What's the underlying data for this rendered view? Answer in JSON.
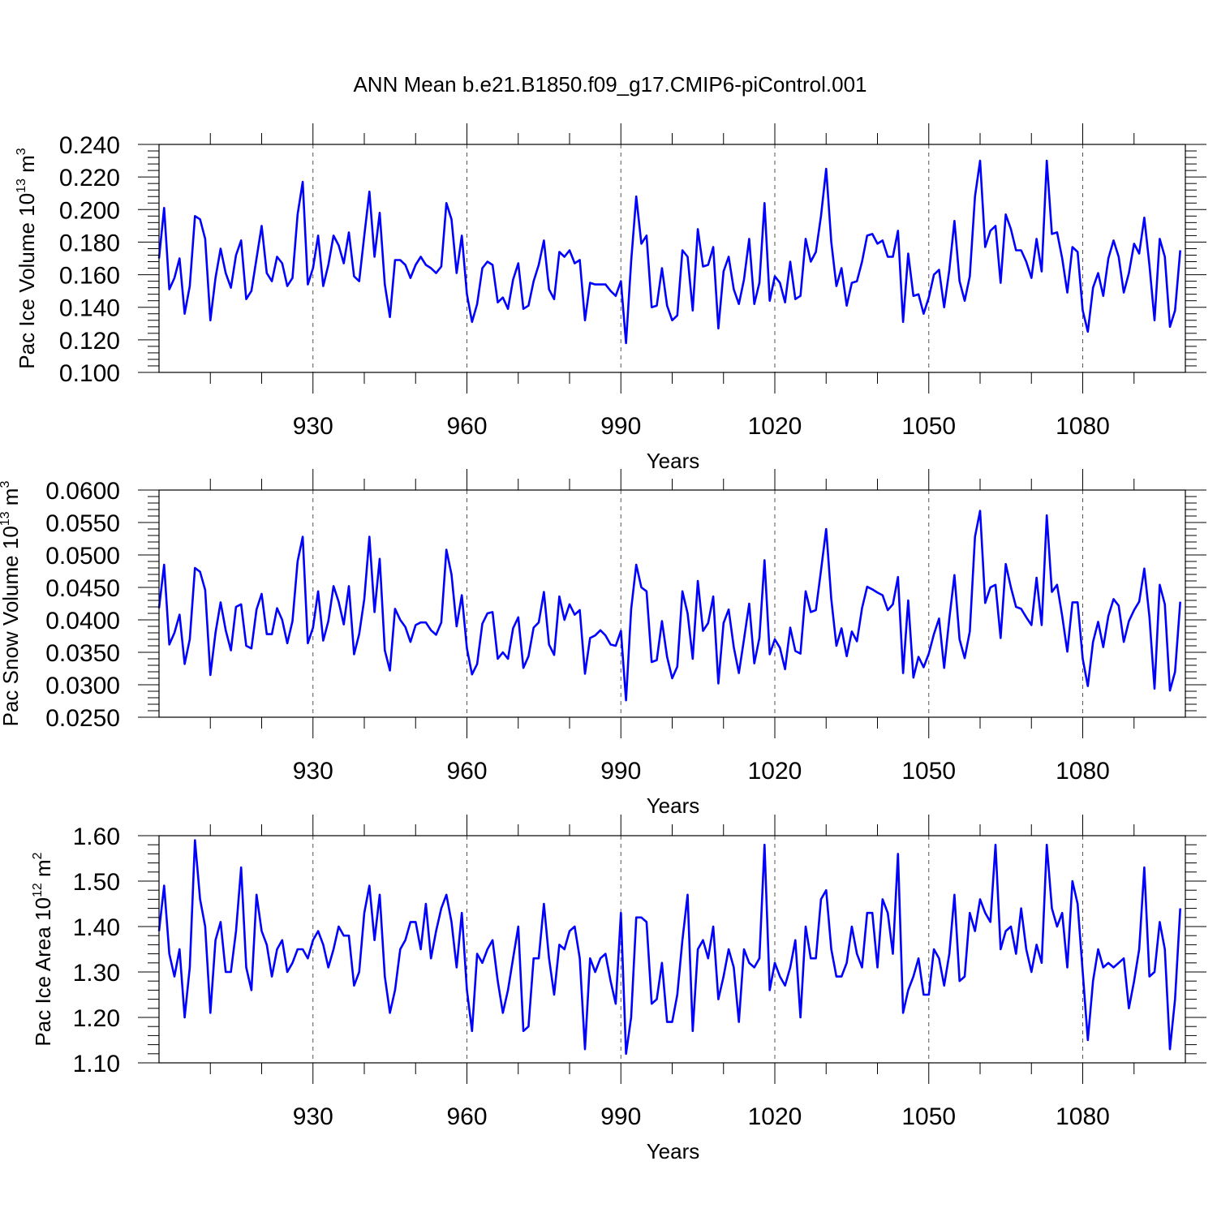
{
  "title": "ANN Mean b.e21.B1850.f09_g17.CMIP6-piControl.001",
  "series_color": "#0000ff",
  "chart_data": [
    {
      "type": "line",
      "ylabel_main": "Pac Ice Volume 10",
      "ylabel_exp": "13",
      "ylabel_unit": "m",
      "ylabel_unit_exp": "3",
      "xlabel": "Years",
      "xlim": [
        900,
        1100
      ],
      "xticks": [
        930,
        960,
        990,
        1020,
        1050,
        1080
      ],
      "ylim": [
        0.1,
        0.24
      ],
      "yticks": [
        0.1,
        0.12,
        0.14,
        0.16,
        0.18,
        0.2,
        0.22,
        0.24
      ],
      "ytick_labels": [
        "0.100",
        "0.120",
        "0.140",
        "0.160",
        "0.180",
        "0.200",
        "0.220",
        "0.240"
      ],
      "x_start": 900,
      "values": [
        0.17,
        0.201,
        0.151,
        0.158,
        0.17,
        0.136,
        0.153,
        0.196,
        0.194,
        0.182,
        0.132,
        0.158,
        0.176,
        0.161,
        0.152,
        0.172,
        0.181,
        0.145,
        0.15,
        0.17,
        0.19,
        0.161,
        0.156,
        0.171,
        0.167,
        0.153,
        0.158,
        0.197,
        0.217,
        0.154,
        0.164,
        0.184,
        0.153,
        0.166,
        0.184,
        0.178,
        0.167,
        0.186,
        0.159,
        0.156,
        0.184,
        0.211,
        0.171,
        0.198,
        0.154,
        0.134,
        0.169,
        0.169,
        0.166,
        0.158,
        0.166,
        0.171,
        0.166,
        0.164,
        0.161,
        0.165,
        0.204,
        0.194,
        0.161,
        0.184,
        0.148,
        0.131,
        0.142,
        0.164,
        0.168,
        0.166,
        0.143,
        0.146,
        0.139,
        0.157,
        0.167,
        0.139,
        0.141,
        0.156,
        0.166,
        0.181,
        0.151,
        0.145,
        0.174,
        0.171,
        0.175,
        0.167,
        0.169,
        0.132,
        0.155,
        0.154,
        0.154,
        0.154,
        0.15,
        0.147,
        0.156,
        0.118,
        0.168,
        0.208,
        0.179,
        0.184,
        0.14,
        0.141,
        0.164,
        0.141,
        0.132,
        0.135,
        0.175,
        0.171,
        0.138,
        0.188,
        0.165,
        0.166,
        0.177,
        0.127,
        0.162,
        0.171,
        0.151,
        0.142,
        0.157,
        0.182,
        0.142,
        0.155,
        0.204,
        0.144,
        0.159,
        0.155,
        0.143,
        0.168,
        0.145,
        0.147,
        0.182,
        0.168,
        0.174,
        0.196,
        0.225,
        0.18,
        0.153,
        0.164,
        0.141,
        0.155,
        0.156,
        0.168,
        0.184,
        0.185,
        0.179,
        0.181,
        0.171,
        0.171,
        0.187,
        0.131,
        0.173,
        0.147,
        0.148,
        0.136,
        0.146,
        0.16,
        0.163,
        0.14,
        0.163,
        0.193,
        0.156,
        0.144,
        0.159,
        0.208,
        0.23,
        0.177,
        0.187,
        0.19,
        0.155,
        0.197,
        0.188,
        0.175,
        0.175,
        0.168,
        0.158,
        0.182,
        0.162,
        0.23,
        0.185,
        0.186,
        0.17,
        0.149,
        0.177,
        0.174,
        0.138,
        0.125,
        0.152,
        0.161,
        0.147,
        0.17,
        0.181,
        0.171,
        0.149,
        0.161,
        0.179,
        0.173,
        0.195,
        0.166,
        0.132,
        0.182,
        0.171,
        0.128,
        0.138,
        0.175
      ]
    },
    {
      "type": "line",
      "ylabel_main": "Pac Snow Volume 10",
      "ylabel_exp": "13",
      "ylabel_unit": "m",
      "ylabel_unit_exp": "3",
      "xlabel": "Years",
      "xlim": [
        900,
        1100
      ],
      "xticks": [
        930,
        960,
        990,
        1020,
        1050,
        1080
      ],
      "ylim": [
        0.025,
        0.06
      ],
      "yticks": [
        0.025,
        0.03,
        0.035,
        0.04,
        0.045,
        0.05,
        0.055,
        0.06
      ],
      "ytick_labels": [
        "0.0250",
        "0.0300",
        "0.0350",
        "0.0400",
        "0.0450",
        "0.0500",
        "0.0550",
        "0.0600"
      ],
      "x_start": 900,
      "values": [
        0.0418,
        0.0485,
        0.0362,
        0.038,
        0.0408,
        0.0332,
        0.037,
        0.048,
        0.0474,
        0.0446,
        0.0315,
        0.038,
        0.0427,
        0.0384,
        0.0353,
        0.042,
        0.0424,
        0.036,
        0.0356,
        0.0416,
        0.044,
        0.0378,
        0.0378,
        0.0418,
        0.04,
        0.0364,
        0.0398,
        0.049,
        0.0528,
        0.0364,
        0.0388,
        0.0444,
        0.0368,
        0.0398,
        0.0452,
        0.0428,
        0.0393,
        0.0452,
        0.0347,
        0.0378,
        0.0432,
        0.0528,
        0.0412,
        0.0494,
        0.0353,
        0.0322,
        0.0417,
        0.04,
        0.0389,
        0.0366,
        0.0392,
        0.0396,
        0.0396,
        0.0384,
        0.0377,
        0.0396,
        0.0508,
        0.047,
        0.039,
        0.0438,
        0.0356,
        0.0316,
        0.0332,
        0.0394,
        0.041,
        0.0412,
        0.034,
        0.035,
        0.034,
        0.0387,
        0.0404,
        0.0326,
        0.0344,
        0.0388,
        0.0396,
        0.0443,
        0.0362,
        0.0346,
        0.0436,
        0.04,
        0.0424,
        0.0408,
        0.0415,
        0.0317,
        0.0372,
        0.0376,
        0.0384,
        0.0376,
        0.0362,
        0.036,
        0.0383,
        0.0276,
        0.0416,
        0.0485,
        0.045,
        0.0444,
        0.0335,
        0.0338,
        0.0398,
        0.0343,
        0.031,
        0.0328,
        0.0444,
        0.041,
        0.034,
        0.046,
        0.0383,
        0.0395,
        0.0436,
        0.0302,
        0.0395,
        0.0416,
        0.0358,
        0.0318,
        0.037,
        0.0425,
        0.0333,
        0.0372,
        0.0492,
        0.0347,
        0.037,
        0.0357,
        0.0324,
        0.0388,
        0.0352,
        0.0348,
        0.0444,
        0.0412,
        0.0415,
        0.0476,
        0.054,
        0.0432,
        0.036,
        0.0387,
        0.0344,
        0.0382,
        0.0367,
        0.0418,
        0.0451,
        0.0447,
        0.0442,
        0.0438,
        0.0415,
        0.0424,
        0.0466,
        0.0318,
        0.043,
        0.0311,
        0.0343,
        0.0327,
        0.0348,
        0.0378,
        0.0402,
        0.0326,
        0.0402,
        0.0469,
        0.037,
        0.0341,
        0.0382,
        0.0528,
        0.0568,
        0.0426,
        0.045,
        0.0454,
        0.0372,
        0.0486,
        0.045,
        0.042,
        0.0417,
        0.0404,
        0.0392,
        0.0465,
        0.0392,
        0.0561,
        0.0443,
        0.0454,
        0.0406,
        0.0351,
        0.0427,
        0.0427,
        0.034,
        0.0298,
        0.0366,
        0.0397,
        0.0358,
        0.0406,
        0.0432,
        0.0422,
        0.0366,
        0.0398,
        0.0415,
        0.0428,
        0.0479,
        0.0405,
        0.0294,
        0.0454,
        0.0424,
        0.0291,
        0.032,
        0.0428
      ]
    },
    {
      "type": "line",
      "ylabel_main": "Pac Ice Area 10",
      "ylabel_exp": "12",
      "ylabel_unit": "m",
      "ylabel_unit_exp": "2",
      "xlabel": "Years",
      "xlim": [
        900,
        1100
      ],
      "xticks": [
        930,
        960,
        990,
        1020,
        1050,
        1080
      ],
      "ylim": [
        1.1,
        1.6
      ],
      "yticks": [
        1.1,
        1.2,
        1.3,
        1.4,
        1.5,
        1.6
      ],
      "ytick_labels": [
        "1.10",
        "1.20",
        "1.30",
        "1.40",
        "1.50",
        "1.60"
      ],
      "x_start": 900,
      "values": [
        1.39,
        1.49,
        1.34,
        1.29,
        1.35,
        1.2,
        1.31,
        1.59,
        1.46,
        1.4,
        1.21,
        1.37,
        1.41,
        1.3,
        1.3,
        1.39,
        1.53,
        1.31,
        1.26,
        1.47,
        1.39,
        1.36,
        1.29,
        1.35,
        1.37,
        1.3,
        1.32,
        1.35,
        1.35,
        1.33,
        1.37,
        1.39,
        1.36,
        1.31,
        1.35,
        1.4,
        1.38,
        1.38,
        1.27,
        1.3,
        1.43,
        1.49,
        1.37,
        1.47,
        1.29,
        1.21,
        1.26,
        1.35,
        1.37,
        1.41,
        1.41,
        1.35,
        1.45,
        1.33,
        1.39,
        1.44,
        1.47,
        1.41,
        1.31,
        1.43,
        1.26,
        1.17,
        1.34,
        1.32,
        1.35,
        1.37,
        1.28,
        1.21,
        1.26,
        1.33,
        1.4,
        1.17,
        1.18,
        1.33,
        1.33,
        1.45,
        1.33,
        1.25,
        1.36,
        1.35,
        1.39,
        1.4,
        1.33,
        1.13,
        1.33,
        1.3,
        1.33,
        1.34,
        1.28,
        1.23,
        1.43,
        1.12,
        1.2,
        1.42,
        1.42,
        1.41,
        1.23,
        1.24,
        1.32,
        1.19,
        1.19,
        1.25,
        1.37,
        1.47,
        1.17,
        1.35,
        1.37,
        1.33,
        1.4,
        1.24,
        1.29,
        1.35,
        1.31,
        1.19,
        1.35,
        1.32,
        1.31,
        1.33,
        1.58,
        1.26,
        1.32,
        1.29,
        1.27,
        1.31,
        1.37,
        1.2,
        1.4,
        1.33,
        1.33,
        1.46,
        1.48,
        1.35,
        1.29,
        1.29,
        1.32,
        1.4,
        1.34,
        1.31,
        1.43,
        1.43,
        1.31,
        1.46,
        1.43,
        1.34,
        1.56,
        1.21,
        1.26,
        1.29,
        1.33,
        1.25,
        1.25,
        1.35,
        1.33,
        1.27,
        1.34,
        1.47,
        1.28,
        1.29,
        1.43,
        1.39,
        1.46,
        1.43,
        1.41,
        1.58,
        1.35,
        1.39,
        1.4,
        1.34,
        1.44,
        1.35,
        1.3,
        1.36,
        1.32,
        1.58,
        1.44,
        1.4,
        1.43,
        1.31,
        1.5,
        1.45,
        1.3,
        1.15,
        1.28,
        1.35,
        1.31,
        1.32,
        1.31,
        1.32,
        1.33,
        1.22,
        1.28,
        1.35,
        1.53,
        1.29,
        1.3,
        1.41,
        1.35,
        1.13,
        1.24,
        1.44
      ]
    }
  ]
}
